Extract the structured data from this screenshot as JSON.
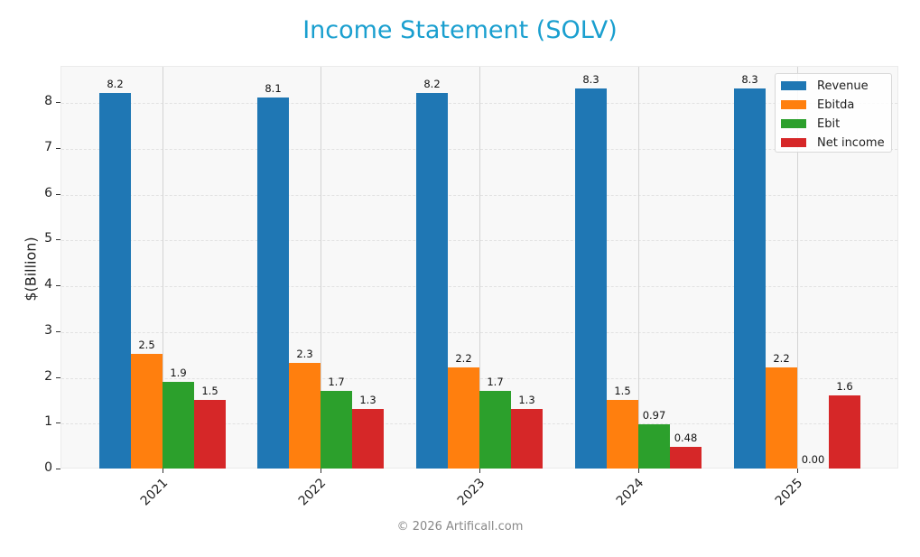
{
  "title": "Income Statement (SOLV)",
  "footer": "© 2026 Artificall.com",
  "y_axis": {
    "label": "$(Billion)",
    "ticks": [
      "0",
      "1",
      "2",
      "3",
      "4",
      "5",
      "6",
      "7",
      "8"
    ]
  },
  "legend": {
    "items": [
      {
        "label": "Revenue",
        "color": "#1f77b4"
      },
      {
        "label": "Ebitda",
        "color": "#ff7f0e"
      },
      {
        "label": "Ebit",
        "color": "#2ca02c"
      },
      {
        "label": "Net income",
        "color": "#d62728"
      }
    ]
  },
  "value_labels": {
    "revenue": [
      "8.2",
      "8.1",
      "8.2",
      "8.3",
      "8.3"
    ],
    "ebitda": [
      "2.5",
      "2.3",
      "2.2",
      "1.5",
      "2.2"
    ],
    "ebit": [
      "1.9",
      "1.7",
      "1.7",
      "0.97",
      "0.00"
    ],
    "net_income": [
      "1.5",
      "1.3",
      "1.3",
      "0.48",
      "1.6"
    ]
  },
  "chart_data": {
    "type": "bar",
    "title": "Income Statement (SOLV)",
    "xlabel": "",
    "ylabel": "$(Billion)",
    "ylim": [
      0,
      8.8
    ],
    "grid": true,
    "legend_position": "upper right",
    "categories": [
      "2021",
      "2022",
      "2023",
      "2024",
      "2025"
    ],
    "series": [
      {
        "name": "Revenue",
        "color": "#1f77b4",
        "values": [
          8.2,
          8.1,
          8.2,
          8.3,
          8.3
        ]
      },
      {
        "name": "Ebitda",
        "color": "#ff7f0e",
        "values": [
          2.5,
          2.3,
          2.2,
          1.5,
          2.2
        ]
      },
      {
        "name": "Ebit",
        "color": "#2ca02c",
        "values": [
          1.9,
          1.7,
          1.7,
          0.97,
          0.0
        ]
      },
      {
        "name": "Net income",
        "color": "#d62728",
        "values": [
          1.5,
          1.3,
          1.3,
          0.48,
          1.6
        ]
      }
    ]
  }
}
